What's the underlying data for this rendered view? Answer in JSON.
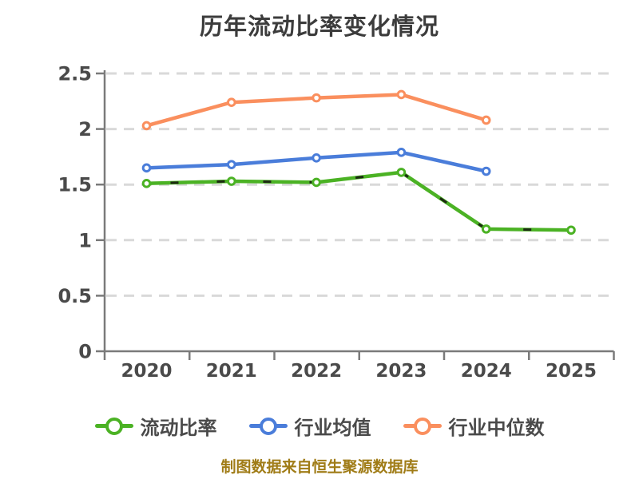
{
  "title": "历年流动比率变化情况",
  "footer": "制图数据来自恒生聚源数据库",
  "legend": [
    {
      "key": "current-ratio",
      "label": "流动比率",
      "color": "#4bb224"
    },
    {
      "key": "industry-mean",
      "label": "行业均值",
      "color": "#4a7dda"
    },
    {
      "key": "industry-median",
      "label": "行业中位数",
      "color": "#fa8f5e"
    }
  ],
  "colors": {
    "title_text": "#3c3c3c",
    "axis_spine": "#7a7a7a",
    "tick_text": "#4a4a4a",
    "gridline": "#d9d9d9",
    "marker_fill": "#ffffff",
    "green_series": "#4bb224",
    "blue_series": "#4a7dda",
    "orange_series": "#fa8f5e",
    "footer_text": "#a07c17"
  },
  "chart_data": {
    "type": "line",
    "title": "历年流动比率变化情况",
    "categories": [
      "2020",
      "2021",
      "2022",
      "2023",
      "2024",
      "2025"
    ],
    "series": [
      {
        "key": "current-ratio",
        "name": "流动比率",
        "color": "#4bb224",
        "values": [
          1.51,
          1.53,
          1.52,
          1.61,
          1.1,
          1.09
        ]
      },
      {
        "key": "industry-mean",
        "name": "行业均值",
        "color": "#4a7dda",
        "values": [
          1.65,
          1.68,
          1.74,
          1.79,
          1.62,
          null
        ]
      },
      {
        "key": "industry-median",
        "name": "行业中位数",
        "color": "#fa8f5e",
        "values": [
          2.03,
          2.24,
          2.28,
          2.31,
          2.08,
          null
        ]
      }
    ],
    "xlabel": "",
    "ylabel": "",
    "ylim": [
      0,
      2.5
    ],
    "ytick_step": 0.5,
    "yticks": [
      "0",
      "0.5",
      "1",
      "1.5",
      "2",
      "2.5"
    ],
    "grid": "dashed-horizontal",
    "legend_position": "bottom",
    "marker": "circle-white-fill",
    "annotation": "制图数据来自恒生聚源数据库"
  }
}
